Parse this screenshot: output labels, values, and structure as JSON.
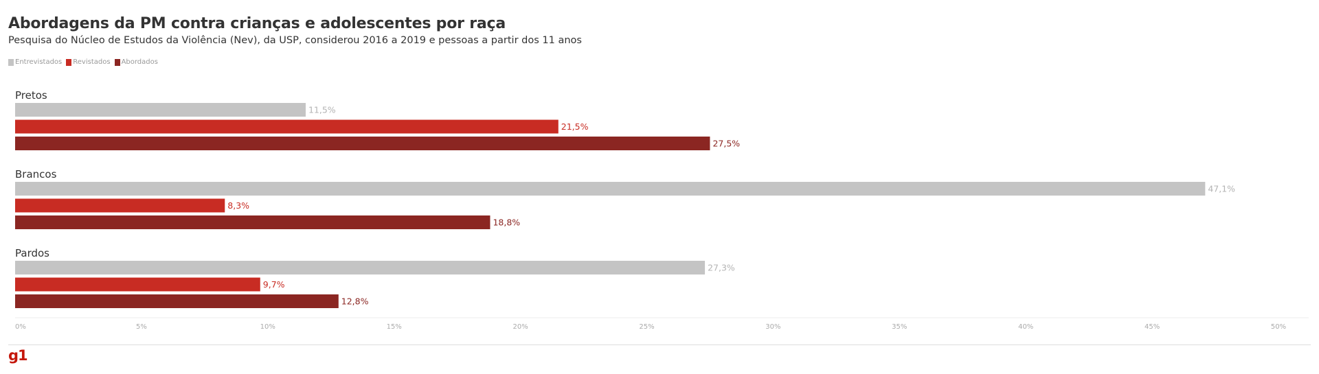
{
  "header": {
    "title": "Abordagens da PM contra crianças e adolescentes por raça",
    "subtitle": "Pesquisa do Núcleo de Estudos da Violência (Nev), da USP, considerou 2016 a 2019 e pessoas a partir dos 11 anos"
  },
  "legend": [
    {
      "label": "Entrevistados",
      "color": "#c4c4c4"
    },
    {
      "label": "Revistados",
      "color": "#c82c23"
    },
    {
      "label": "Abordados",
      "color": "#8b2622"
    }
  ],
  "chart_data": {
    "type": "bar",
    "orientation": "horizontal",
    "categories": [
      "Pretos",
      "Brancos",
      "Pardos"
    ],
    "series": [
      {
        "name": "Entrevistados",
        "color": "#c4c4c4",
        "label_color": "#b4b4b4",
        "values": [
          11.5,
          47.1,
          27.3
        ],
        "labels": [
          "11,5%",
          "47,1%",
          "27,3%"
        ]
      },
      {
        "name": "Revistados",
        "color": "#c82c23",
        "label_color": "#c82c23",
        "values": [
          21.5,
          8.3,
          9.7
        ],
        "labels": [
          "21,5%",
          "8,3%",
          "9,7%"
        ]
      },
      {
        "name": "Abordados",
        "color": "#8b2622",
        "label_color": "#8b2622",
        "values": [
          27.5,
          18.8,
          12.8
        ],
        "labels": [
          "27,5%",
          "18,8%",
          "12,8%"
        ]
      }
    ],
    "xlim": [
      0,
      50
    ],
    "xticks": [
      0,
      5,
      10,
      15,
      20,
      25,
      30,
      35,
      40,
      45,
      50
    ],
    "xtick_labels": [
      "0%",
      "5%",
      "10%",
      "15%",
      "20%",
      "25%",
      "30%",
      "35%",
      "40%",
      "45%",
      "50%"
    ],
    "legend_position": "top-left",
    "grid": false
  },
  "footer": {
    "logo": "g1"
  }
}
